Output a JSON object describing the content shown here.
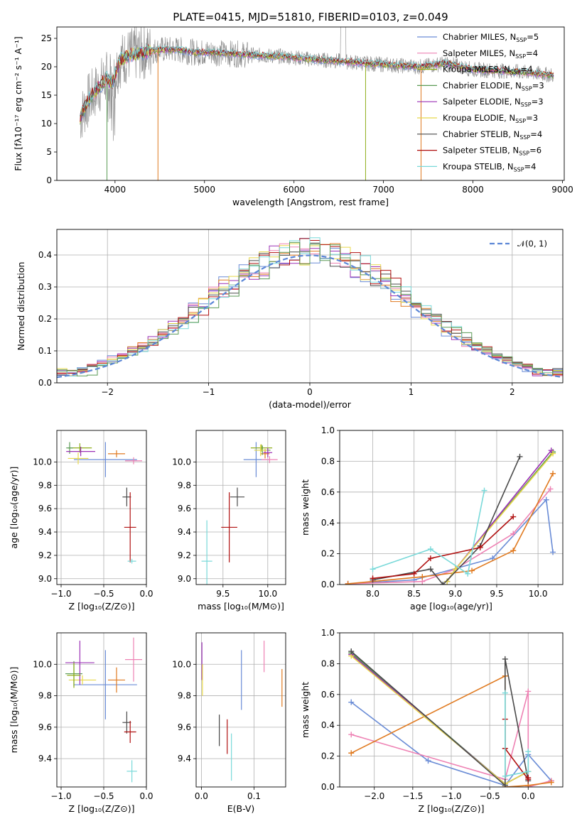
{
  "palette": [
    "#6a8cd6",
    "#ee82b4",
    "#8fae1b",
    "#5a9a55",
    "#9b30b6",
    "#e8d84a",
    "#4a4a4a",
    "#b01010",
    "#79d9d9",
    "#e07a20",
    "#888888"
  ],
  "chart_data": [
    {
      "id": "spectrum",
      "type": "line",
      "title": "PLATE=0415, MJD=51810, FIBERID=0103, z=0.049",
      "xlabel": "wavelength [Angstrom, rest frame]",
      "ylabel": "Flux [fλ10⁻¹⁷ erg cm⁻² s⁻¹ A⁻¹]",
      "xlim": [
        3350,
        9020
      ],
      "ylim": [
        0,
        27
      ],
      "xticks": [
        "4000",
        "5000",
        "6000",
        "7000",
        "8000",
        "9000"
      ],
      "yticks": [
        "0",
        "5",
        "10",
        "15",
        "20",
        "25"
      ],
      "grid": false,
      "legend": "right",
      "continuum": {
        "x": [
          3610,
          3700,
          3800,
          3900,
          3970,
          4050,
          4150,
          4300,
          4500,
          4700,
          4900,
          5100,
          5300,
          5600,
          5900,
          6200,
          6500,
          6800,
          7100,
          7400,
          7700,
          8000,
          8300,
          8600,
          8900
        ],
        "y": [
          11,
          14,
          16,
          18,
          17,
          21,
          22,
          22.5,
          23,
          23,
          22.5,
          22.5,
          22.3,
          22,
          21.8,
          21.3,
          21,
          20.6,
          20.3,
          20,
          20.6,
          19.5,
          19.3,
          19,
          18.5
        ]
      },
      "series": [
        {
          "name": "Chabrier MILES",
          "nssp": "5"
        },
        {
          "name": "Salpeter MILES",
          "nssp": "4"
        },
        {
          "name": "Kroupa MILES",
          "nssp": "4"
        },
        {
          "name": "Chabrier ELODIE",
          "nssp": "3"
        },
        {
          "name": "Salpeter ELODIE",
          "nssp": "3"
        },
        {
          "name": "Kroupa ELODIE",
          "nssp": "3"
        },
        {
          "name": "Chabrier STELIB",
          "nssp": "4"
        },
        {
          "name": "Salpeter STELIB",
          "nssp": "6"
        },
        {
          "name": "Kroupa STELIB",
          "nssp": "4"
        }
      ]
    },
    {
      "id": "residuals",
      "type": "line",
      "xlabel": "(data-model)/error",
      "ylabel": "Normed distribution",
      "xlim": [
        -2.5,
        2.5
      ],
      "ylim": [
        0,
        0.48
      ],
      "xticks": [
        "−2",
        "−1",
        "0",
        "1",
        "2"
      ],
      "yticks": [
        "0.0",
        "0.1",
        "0.2",
        "0.3",
        "0.4"
      ],
      "grid": true,
      "legend": "top-right",
      "legend_label": "𝒩(0, 1)",
      "gaussian": {
        "mean": 0,
        "sigma": 1
      }
    },
    {
      "id": "age_vs_Z",
      "type": "scatter",
      "xlabel": "Z [log₁₀(Z/Z⊙)]",
      "ylabel": "age  [log₁₀(age/yr)]",
      "xlim": [
        -1.05,
        0.0
      ],
      "ylim": [
        8.95,
        10.27
      ],
      "xticks": [
        "−1.0",
        "−0.5",
        "0.0"
      ],
      "yticks": [
        "9.0",
        "9.2",
        "9.4",
        "9.6",
        "9.8",
        "10.0"
      ],
      "grid": true,
      "points": [
        {
          "x": -0.48,
          "y": 10.02,
          "xerr": 0.37,
          "yerr": 0.15,
          "series": 0
        },
        {
          "x": -0.35,
          "y": 10.07,
          "xerr": 0.1,
          "yerr": 0.03,
          "series": 9
        },
        {
          "x": -0.78,
          "y": 10.12,
          "xerr": 0.14,
          "yerr": 0.04,
          "series": 2
        },
        {
          "x": -0.9,
          "y": 10.12,
          "xerr": 0.04,
          "yerr": 0.05,
          "series": 3
        },
        {
          "x": -0.77,
          "y": 10.09,
          "xerr": 0.17,
          "yerr": 0.04,
          "series": 4
        },
        {
          "x": -0.8,
          "y": 10.03,
          "xerr": 0.12,
          "yerr": 0.05,
          "series": 5
        },
        {
          "x": -0.15,
          "y": 10.01,
          "xerr": 0.1,
          "yerr": 0.03,
          "series": 1
        },
        {
          "x": -0.23,
          "y": 9.7,
          "xerr": 0.05,
          "yerr": 0.08,
          "series": 6
        },
        {
          "x": -0.19,
          "y": 9.44,
          "xerr": 0.07,
          "yerr": 0.3,
          "series": 7
        },
        {
          "x": -0.17,
          "y": 9.15,
          "xerr": 0.05,
          "yerr": 0.02,
          "series": 8
        }
      ]
    },
    {
      "id": "age_vs_mass",
      "type": "scatter",
      "xlabel": "mass [log₁₀(M/M⊙)]",
      "xlim": [
        9.2,
        10.2
      ],
      "ylim": [
        8.95,
        10.27
      ],
      "xticks": [
        "9.5",
        "10.0"
      ],
      "yticks": [
        "9.0",
        "9.2",
        "9.4",
        "9.6",
        "9.8",
        "10.0"
      ],
      "grid": true,
      "points": [
        {
          "x": 9.87,
          "y": 10.02,
          "xerr": 0.14,
          "yerr": 0.15,
          "series": 0
        },
        {
          "x": 10.02,
          "y": 10.02,
          "xerr": 0.09,
          "yerr": 0.03,
          "series": 1
        },
        {
          "x": 9.97,
          "y": 10.07,
          "xerr": 0.05,
          "yerr": 0.04,
          "series": 9
        },
        {
          "x": 9.93,
          "y": 10.12,
          "xerr": 0.12,
          "yerr": 0.03,
          "series": 2
        },
        {
          "x": 9.94,
          "y": 10.1,
          "xerr": 0.09,
          "yerr": 0.04,
          "series": 3
        },
        {
          "x": 10.0,
          "y": 10.08,
          "xerr": 0.05,
          "yerr": 0.04,
          "series": 4
        },
        {
          "x": 9.92,
          "y": 10.1,
          "xerr": 0.07,
          "yerr": 0.05,
          "series": 5
        },
        {
          "x": 9.66,
          "y": 9.7,
          "xerr": 0.08,
          "yerr": 0.08,
          "series": 6
        },
        {
          "x": 9.57,
          "y": 9.44,
          "xerr": 0.09,
          "yerr": 0.3,
          "series": 7
        },
        {
          "x": 9.32,
          "y": 9.15,
          "xerr": 0.06,
          "yerr": 0.35,
          "series": 8
        }
      ]
    },
    {
      "id": "massweight_vs_age",
      "type": "line",
      "xlabel": "age  [log₁₀(age/yr)]",
      "ylabel": "mass weight",
      "xlim": [
        7.6,
        10.3
      ],
      "ylim": [
        0,
        1
      ],
      "xticks": [
        "8.0",
        "8.5",
        "9.0",
        "9.5",
        "10.0"
      ],
      "yticks": [
        "0.0",
        "0.2",
        "0.4",
        "0.6",
        "0.8",
        "1.0"
      ],
      "grid": true,
      "series": [
        {
          "series": 0,
          "x": [
            7.7,
            8.5,
            9.45,
            10.1,
            10.18
          ],
          "y": [
            0.005,
            0.03,
            0.17,
            0.55,
            0.21
          ]
        },
        {
          "series": 1,
          "x": [
            7.7,
            8.6,
            9.0,
            9.7,
            10.15
          ],
          "y": [
            0.005,
            0.02,
            0.1,
            0.33,
            0.62
          ]
        },
        {
          "series": 9,
          "x": [
            7.7,
            8.6,
            9.2,
            9.7,
            10.18
          ],
          "y": [
            0.005,
            0.05,
            0.09,
            0.22,
            0.72
          ]
        },
        {
          "series": 2,
          "x": [
            8.9,
            9.0,
            10.18
          ],
          "y": [
            0.02,
            0.1,
            0.86
          ]
        },
        {
          "series": 3,
          "x": [
            8.9,
            9.0,
            10.18
          ],
          "y": [
            0.02,
            0.1,
            0.86
          ]
        },
        {
          "series": 4,
          "x": [
            8.9,
            9.0,
            10.16
          ],
          "y": [
            0.02,
            0.1,
            0.87
          ]
        },
        {
          "series": 5,
          "x": [
            8.9,
            9.0,
            10.18
          ],
          "y": [
            0.02,
            0.1,
            0.85
          ]
        },
        {
          "series": 6,
          "x": [
            8.0,
            8.7,
            8.85,
            9.3,
            9.78
          ],
          "y": [
            0.03,
            0.1,
            0.0,
            0.25,
            0.83
          ]
        },
        {
          "series": 7,
          "x": [
            8.0,
            8.5,
            8.7,
            9.3,
            9.7
          ],
          "y": [
            0.04,
            0.07,
            0.17,
            0.24,
            0.44
          ]
        },
        {
          "series": 8,
          "x": [
            8.0,
            8.7,
            9.15,
            9.35
          ],
          "y": [
            0.1,
            0.23,
            0.07,
            0.61
          ]
        }
      ]
    },
    {
      "id": "mass_vs_Z",
      "type": "scatter",
      "xlabel": "Z [log₁₀(Z/Z⊙)]",
      "ylabel": "mass [log₁₀(M/M⊙)]",
      "xlim": [
        -1.05,
        0.0
      ],
      "ylim": [
        9.22,
        10.2
      ],
      "xticks": [
        "−1.0",
        "−0.5",
        "0.0"
      ],
      "yticks": [
        "9.4",
        "9.6",
        "9.8",
        "10.0"
      ],
      "grid": true,
      "points": [
        {
          "x": -0.48,
          "y": 9.87,
          "xerr": 0.37,
          "yerr": 0.22,
          "series": 0
        },
        {
          "x": -0.15,
          "y": 10.03,
          "xerr": 0.1,
          "yerr": 0.14,
          "series": 1
        },
        {
          "x": -0.35,
          "y": 9.9,
          "xerr": 0.1,
          "yerr": 0.08,
          "series": 9
        },
        {
          "x": -0.75,
          "y": 9.9,
          "xerr": 0.16,
          "yerr": 0.03,
          "series": 5
        },
        {
          "x": -0.85,
          "y": 9.94,
          "xerr": 0.1,
          "yerr": 0.08,
          "series": 3
        },
        {
          "x": -0.78,
          "y": 10.01,
          "xerr": 0.17,
          "yerr": 0.14,
          "series": 4
        },
        {
          "x": -0.85,
          "y": 9.93,
          "xerr": 0.08,
          "yerr": 0.08,
          "series": 2
        },
        {
          "x": -0.23,
          "y": 9.63,
          "xerr": 0.05,
          "yerr": 0.07,
          "series": 6
        },
        {
          "x": -0.19,
          "y": 9.57,
          "xerr": 0.07,
          "yerr": 0.07,
          "series": 7
        },
        {
          "x": -0.17,
          "y": 9.32,
          "xerr": 0.06,
          "yerr": 0.07,
          "series": 8
        }
      ]
    },
    {
      "id": "mass_vs_ebv",
      "type": "scatter",
      "xlabel": "E(B-V)",
      "xlim": [
        -0.01,
        0.16
      ],
      "ylim": [
        9.22,
        10.2
      ],
      "xticks": [
        "0.0",
        "0.1"
      ],
      "yticks": [
        "9.4",
        "9.6",
        "9.8",
        "10.0"
      ],
      "grid": true,
      "points": [
        {
          "x": 0.076,
          "y": 9.9,
          "yerr": 0.19,
          "series": 0
        },
        {
          "x": 0.119,
          "y": 10.05,
          "yerr": 0.1,
          "series": 1
        },
        {
          "x": 0.153,
          "y": 9.85,
          "yerr": 0.12,
          "series": 9
        },
        {
          "x": 0.001,
          "y": 10.02,
          "yerr": 0.12,
          "series": 4
        },
        {
          "x": 0.002,
          "y": 9.9,
          "yerr": 0.1,
          "series": 5
        },
        {
          "x": 0.034,
          "y": 9.58,
          "yerr": 0.1,
          "series": 6
        },
        {
          "x": 0.049,
          "y": 9.54,
          "yerr": 0.11,
          "series": 7
        },
        {
          "x": 0.057,
          "y": 9.41,
          "yerr": 0.15,
          "series": 8
        }
      ]
    },
    {
      "id": "massweight_vs_Z",
      "type": "line",
      "xlabel": "Z [log₁₀(Z/Z⊙)]",
      "ylabel": "mass weight",
      "xlim": [
        -2.45,
        0.45
      ],
      "ylim": [
        0,
        1
      ],
      "xticks": [
        "−2.0",
        "−1.5",
        "−1.0",
        "−0.5",
        "0.0"
      ],
      "yticks": [
        "0.0",
        "0.2",
        "0.4",
        "0.6",
        "0.8",
        "1.0"
      ],
      "grid": true,
      "series": [
        {
          "series": 0,
          "x": [
            -2.3,
            -1.3,
            -0.3,
            0.0,
            0.3
          ],
          "y": [
            0.55,
            0.17,
            0.01,
            0.21,
            0.04
          ]
        },
        {
          "series": 1,
          "x": [
            -2.3,
            -0.3,
            0.0,
            0.0,
            0.3
          ],
          "y": [
            0.34,
            0.05,
            0.62,
            0.0,
            0.04
          ]
        },
        {
          "series": 9,
          "x": [
            -2.3,
            -0.3,
            -0.3,
            0.0,
            0.3
          ],
          "y": [
            0.22,
            0.72,
            0.0,
            0.01,
            0.03
          ]
        },
        {
          "series": 2,
          "x": [
            -2.3,
            -0.3,
            0.0
          ],
          "y": [
            0.86,
            0.02,
            0.1
          ]
        },
        {
          "series": 3,
          "x": [
            -2.3,
            -0.3,
            0.0
          ],
          "y": [
            0.87,
            0.02,
            0.1
          ]
        },
        {
          "series": 4,
          "x": [
            -2.3,
            -0.3,
            0.0
          ],
          "y": [
            0.86,
            0.02,
            0.1
          ]
        },
        {
          "series": 5,
          "x": [
            -2.3,
            -0.3,
            0.0
          ],
          "y": [
            0.85,
            0.02,
            0.1
          ]
        },
        {
          "series": 6,
          "x": [
            -2.3,
            -0.3,
            -0.3,
            0.0
          ],
          "y": [
            0.88,
            0.01,
            0.83,
            0.04
          ]
        },
        {
          "series": 7,
          "x": [
            -0.3,
            -0.3,
            0.0,
            0.0
          ],
          "y": [
            0.44,
            0.25,
            0.05,
            0.06
          ]
        },
        {
          "series": 8,
          "x": [
            -0.3,
            -0.3,
            0.0,
            0.0
          ],
          "y": [
            0.61,
            0.07,
            0.1,
            0.23
          ]
        }
      ]
    }
  ]
}
